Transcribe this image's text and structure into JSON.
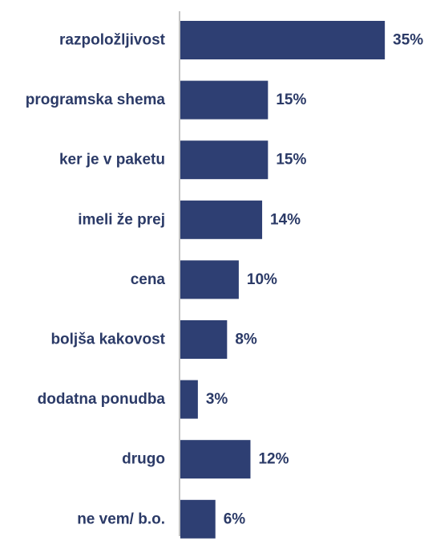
{
  "chart_data": {
    "type": "bar",
    "orientation": "horizontal",
    "categories": [
      "razpoložljivost",
      "programska shema",
      "ker je v paketu",
      "imeli že prej",
      "cena",
      "boljša kakovost",
      "dodatna ponudba",
      "drugo",
      "ne vem/ b.o."
    ],
    "values": [
      35,
      15,
      15,
      14,
      10,
      8,
      3,
      12,
      6
    ],
    "value_labels": [
      "35%",
      "15%",
      "15%",
      "14%",
      "10%",
      "8%",
      "3%",
      "12%",
      "6%"
    ],
    "value_suffix": "%",
    "xlim": [
      0,
      40
    ],
    "grid": false,
    "legend": "none",
    "colors": {
      "bar": "#2e3f73",
      "text": "#2b3a67",
      "axis": "#b0b0b0"
    }
  }
}
